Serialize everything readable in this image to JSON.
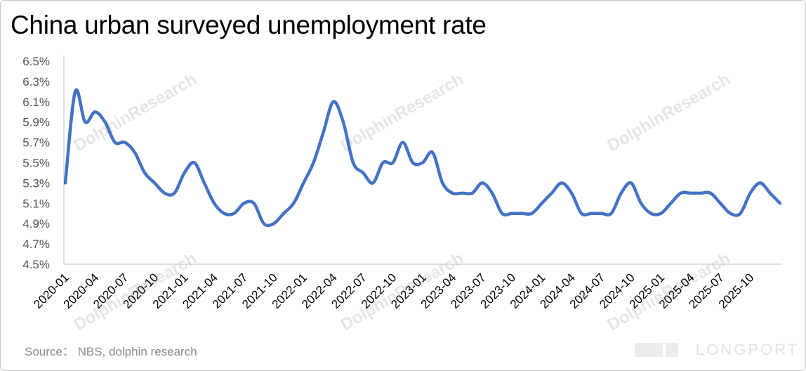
{
  "title": "China urban surveyed unemployment rate",
  "source": "Source：  NBS, dolphin research",
  "watermark": "DolphinResearch",
  "brand": "LONGPORT",
  "colors": {
    "line": "#4472c4",
    "axis": "#bfbfbf"
  },
  "chart_data": {
    "type": "line",
    "title": "China urban surveyed unemployment rate",
    "xlabel": "",
    "ylabel": "",
    "ylim": [
      4.5,
      6.5
    ],
    "yticks": [
      "6.5%",
      "6.3%",
      "6.1%",
      "5.9%",
      "5.7%",
      "5.5%",
      "5.3%",
      "5.1%",
      "4.9%",
      "4.7%",
      "4.5%"
    ],
    "xticks": [
      "2020-01",
      "2020-04",
      "2020-07",
      "2020-10",
      "2021-01",
      "2021-04",
      "2021-07",
      "2021-10",
      "2022-01",
      "2022-04",
      "2022-07",
      "2022-10",
      "2023-01",
      "2023-04",
      "2023-07",
      "2023-10",
      "2024-01",
      "2024-04",
      "2024-07",
      "2024-10",
      "2025-01",
      "2025-04",
      "2025-07",
      "2025-10"
    ],
    "grid": false,
    "legend": "none",
    "series": [
      {
        "values": [
          5.3,
          6.2,
          5.9,
          6.0,
          5.9,
          5.7,
          5.7,
          5.6,
          5.4,
          5.3,
          5.2,
          5.2,
          5.4,
          5.5,
          5.3,
          5.1,
          5.0,
          5.0,
          5.1,
          5.1,
          4.9,
          4.9,
          5.0,
          5.1,
          5.3,
          5.5,
          5.8,
          6.1,
          5.9,
          5.5,
          5.4,
          5.3,
          5.5,
          5.5,
          5.7,
          5.5,
          5.5,
          5.6,
          5.3,
          5.2,
          5.2,
          5.2,
          5.3,
          5.2,
          5.0,
          5.0,
          5.0,
          5.0,
          5.1,
          5.2,
          5.3,
          5.2,
          5.0,
          5.0,
          5.0,
          5.0,
          5.2,
          5.3,
          5.1,
          5.0,
          5.0,
          5.1,
          5.2,
          5.2,
          5.2,
          5.2,
          5.1,
          5.0,
          5.0,
          5.2,
          5.3,
          5.2,
          5.1
        ]
      }
    ]
  }
}
